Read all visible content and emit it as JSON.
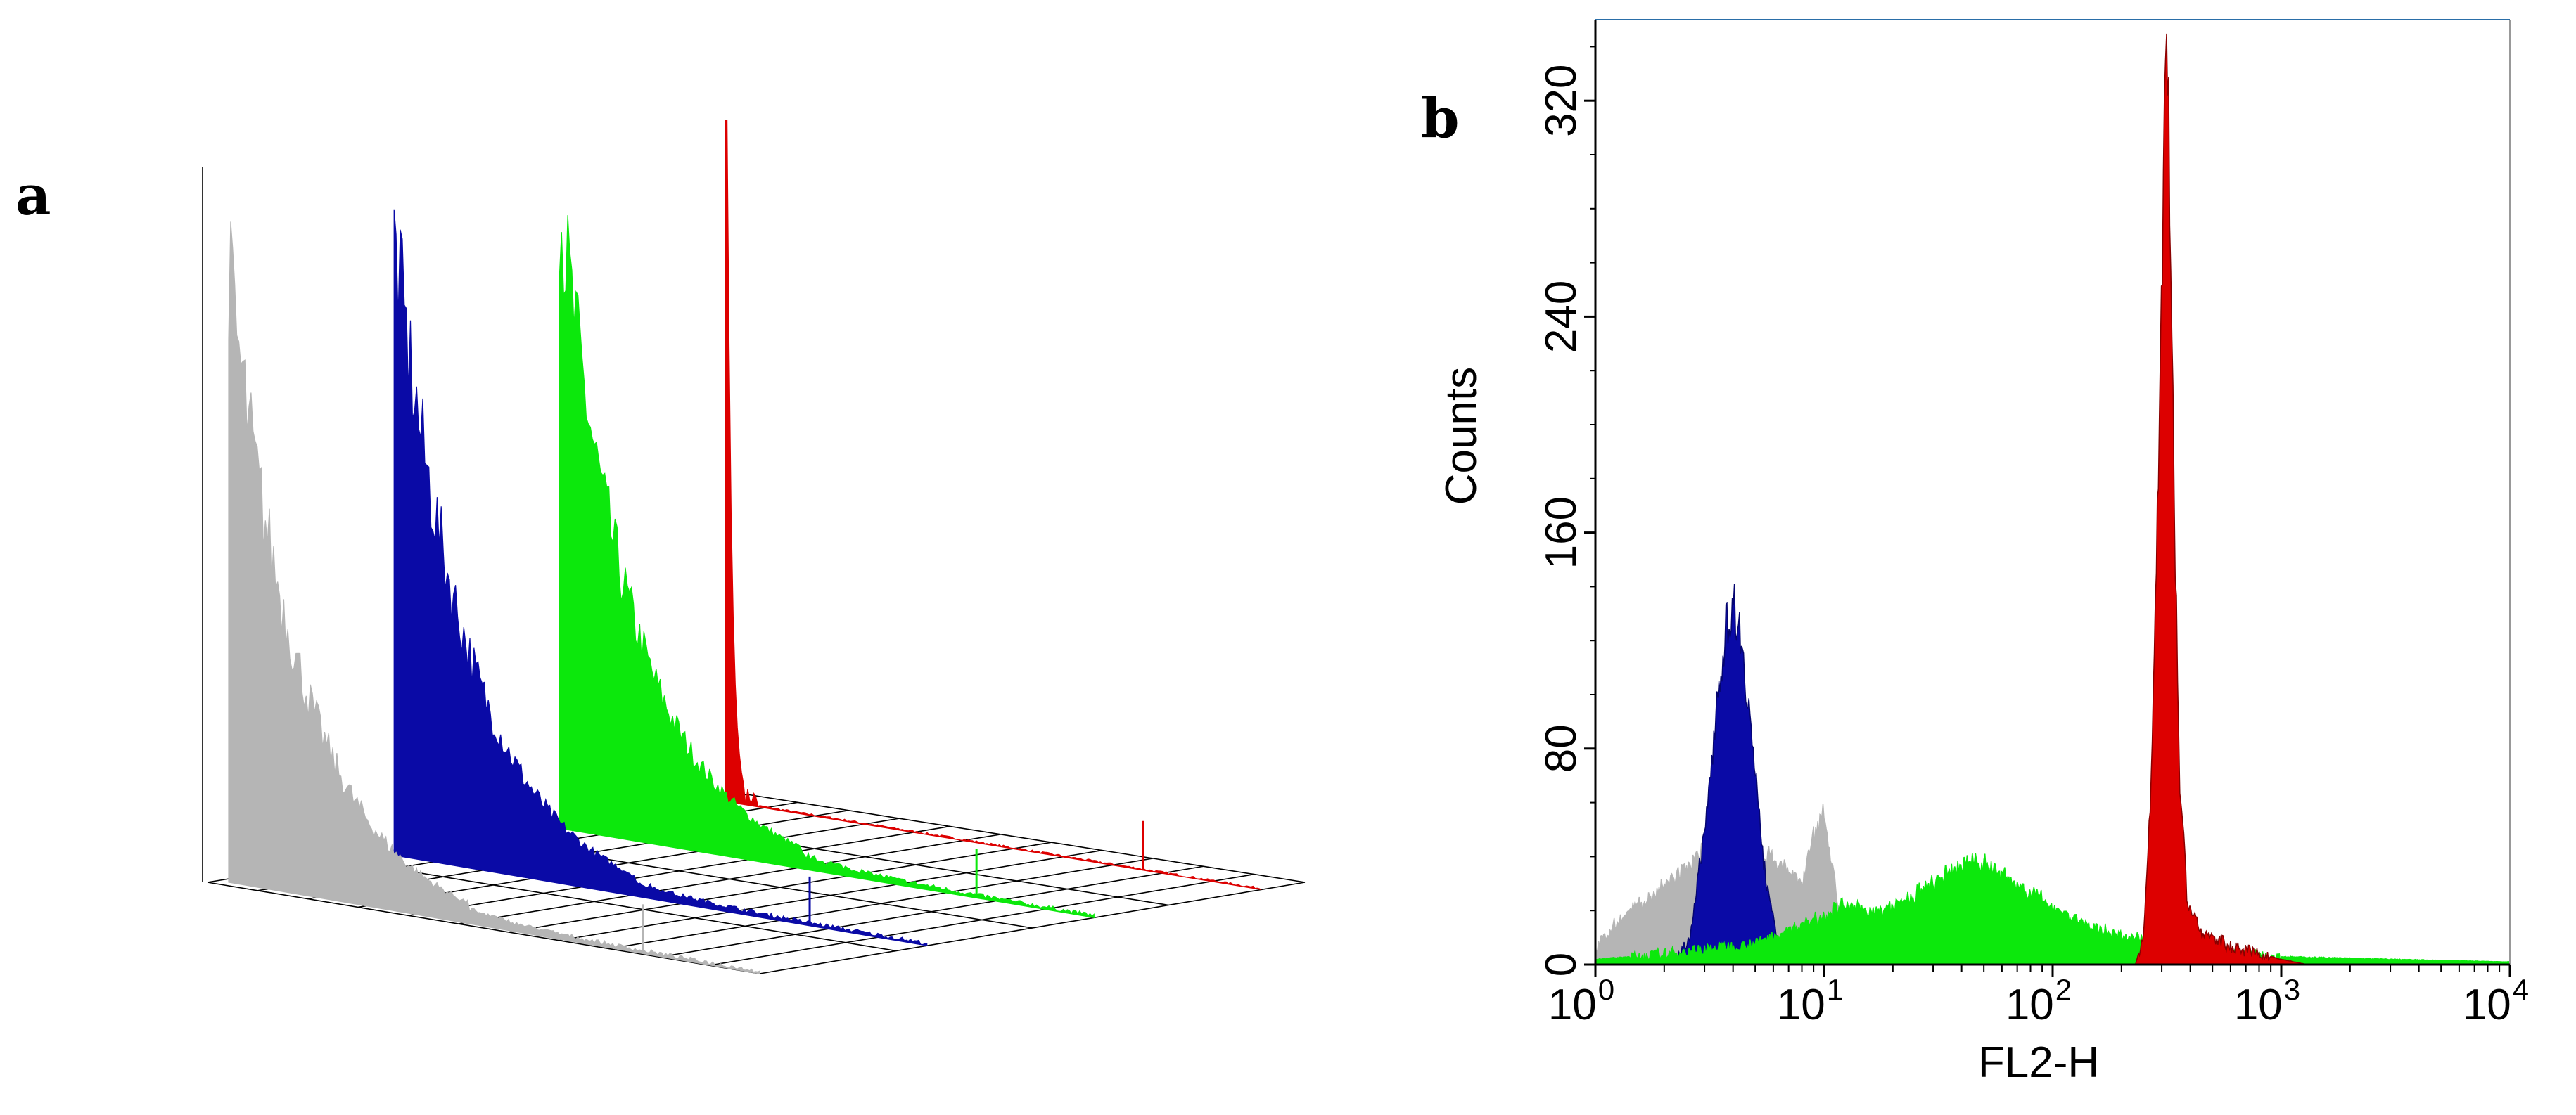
{
  "panels": {
    "a": {
      "letter": "a"
    },
    "b": {
      "letter": "b"
    }
  },
  "colors": {
    "gray": "#b5b5b5",
    "blue": "#0a0aa6",
    "green": "#0ce80c",
    "red": "#dd0000",
    "axis_frame": "#2a6ea8"
  },
  "chart_data": [
    {
      "id": "panel-a",
      "type": "area",
      "title": "",
      "description_kind": "3D offset histogram overlay",
      "series": [
        {
          "name": "gray",
          "color": "#b5b5b5",
          "peak_relative": 0.92,
          "decay": "exponential"
        },
        {
          "name": "blue",
          "color": "#0a0aa6",
          "peak_relative": 0.93,
          "decay": "exponential"
        },
        {
          "name": "green",
          "color": "#0ce80c",
          "peak_relative": 0.94,
          "decay": "exponential"
        },
        {
          "name": "red",
          "color": "#dd0000",
          "peak_relative": 0.95,
          "decay": "sharp"
        }
      ],
      "grid": true
    },
    {
      "id": "panel-b",
      "type": "area",
      "title": "",
      "xlabel": "FL2-H",
      "ylabel": "Counts",
      "xscale": "log",
      "xlim": [
        1,
        10000
      ],
      "ylim": [
        0,
        350
      ],
      "x_ticks": [
        {
          "value": 1,
          "base": "10",
          "exp": "0"
        },
        {
          "value": 10,
          "base": "10",
          "exp": "1"
        },
        {
          "value": 100,
          "base": "10",
          "exp": "2"
        },
        {
          "value": 1000,
          "base": "10",
          "exp": "3"
        },
        {
          "value": 10000,
          "base": "10",
          "exp": "4"
        }
      ],
      "y_ticks": [
        "0",
        "80",
        "160",
        "240",
        "320"
      ],
      "series": [
        {
          "name": "gray",
          "color": "#b5b5b5",
          "points": [
            [
              1.0,
              6
            ],
            [
              1.3,
              18
            ],
            [
              1.8,
              26
            ],
            [
              2.3,
              34
            ],
            [
              3.0,
              42
            ],
            [
              4.0,
              46
            ],
            [
              5.0,
              44
            ],
            [
              6.5,
              38
            ],
            [
              8.0,
              30
            ],
            [
              9.0,
              48
            ],
            [
              10.0,
              58
            ],
            [
              11.0,
              34
            ],
            [
              12.0,
              10
            ],
            [
              14,
              4
            ],
            [
              20,
              2
            ],
            [
              100,
              1
            ],
            [
              1000,
              0
            ],
            [
              10000,
              0
            ]
          ]
        },
        {
          "name": "blue",
          "color": "#0a0aa6",
          "points": [
            [
              2.2,
              0
            ],
            [
              2.6,
              10
            ],
            [
              3.0,
              50
            ],
            [
              3.4,
              100
            ],
            [
              3.8,
              130
            ],
            [
              4.1,
              136
            ],
            [
              4.4,
              120
            ],
            [
              4.9,
              80
            ],
            [
              5.5,
              35
            ],
            [
              6.3,
              8
            ],
            [
              7.0,
              0
            ]
          ]
        },
        {
          "name": "green",
          "color": "#0ce80c",
          "points": [
            [
              1.0,
              2
            ],
            [
              2,
              4
            ],
            [
              5,
              8
            ],
            [
              8,
              15
            ],
            [
              12,
              22
            ],
            [
              18,
              20
            ],
            [
              25,
              26
            ],
            [
              35,
              34
            ],
            [
              45,
              40
            ],
            [
              55,
              36
            ],
            [
              70,
              30
            ],
            [
              100,
              22
            ],
            [
              150,
              14
            ],
            [
              220,
              10
            ],
            [
              350,
              8
            ],
            [
              600,
              5
            ],
            [
              1000,
              3
            ],
            [
              3000,
              2
            ],
            [
              10000,
              1
            ]
          ]
        },
        {
          "name": "red",
          "color": "#dd0000",
          "points": [
            [
              230,
              0
            ],
            [
              250,
              10
            ],
            [
              270,
              70
            ],
            [
              290,
              180
            ],
            [
              305,
              300
            ],
            [
              315,
              334
            ],
            [
              325,
              300
            ],
            [
              340,
              180
            ],
            [
              360,
              70
            ],
            [
              390,
              22
            ],
            [
              450,
              12
            ],
            [
              600,
              7
            ],
            [
              800,
              4
            ],
            [
              1000,
              2
            ],
            [
              1300,
              0
            ]
          ]
        }
      ]
    }
  ]
}
